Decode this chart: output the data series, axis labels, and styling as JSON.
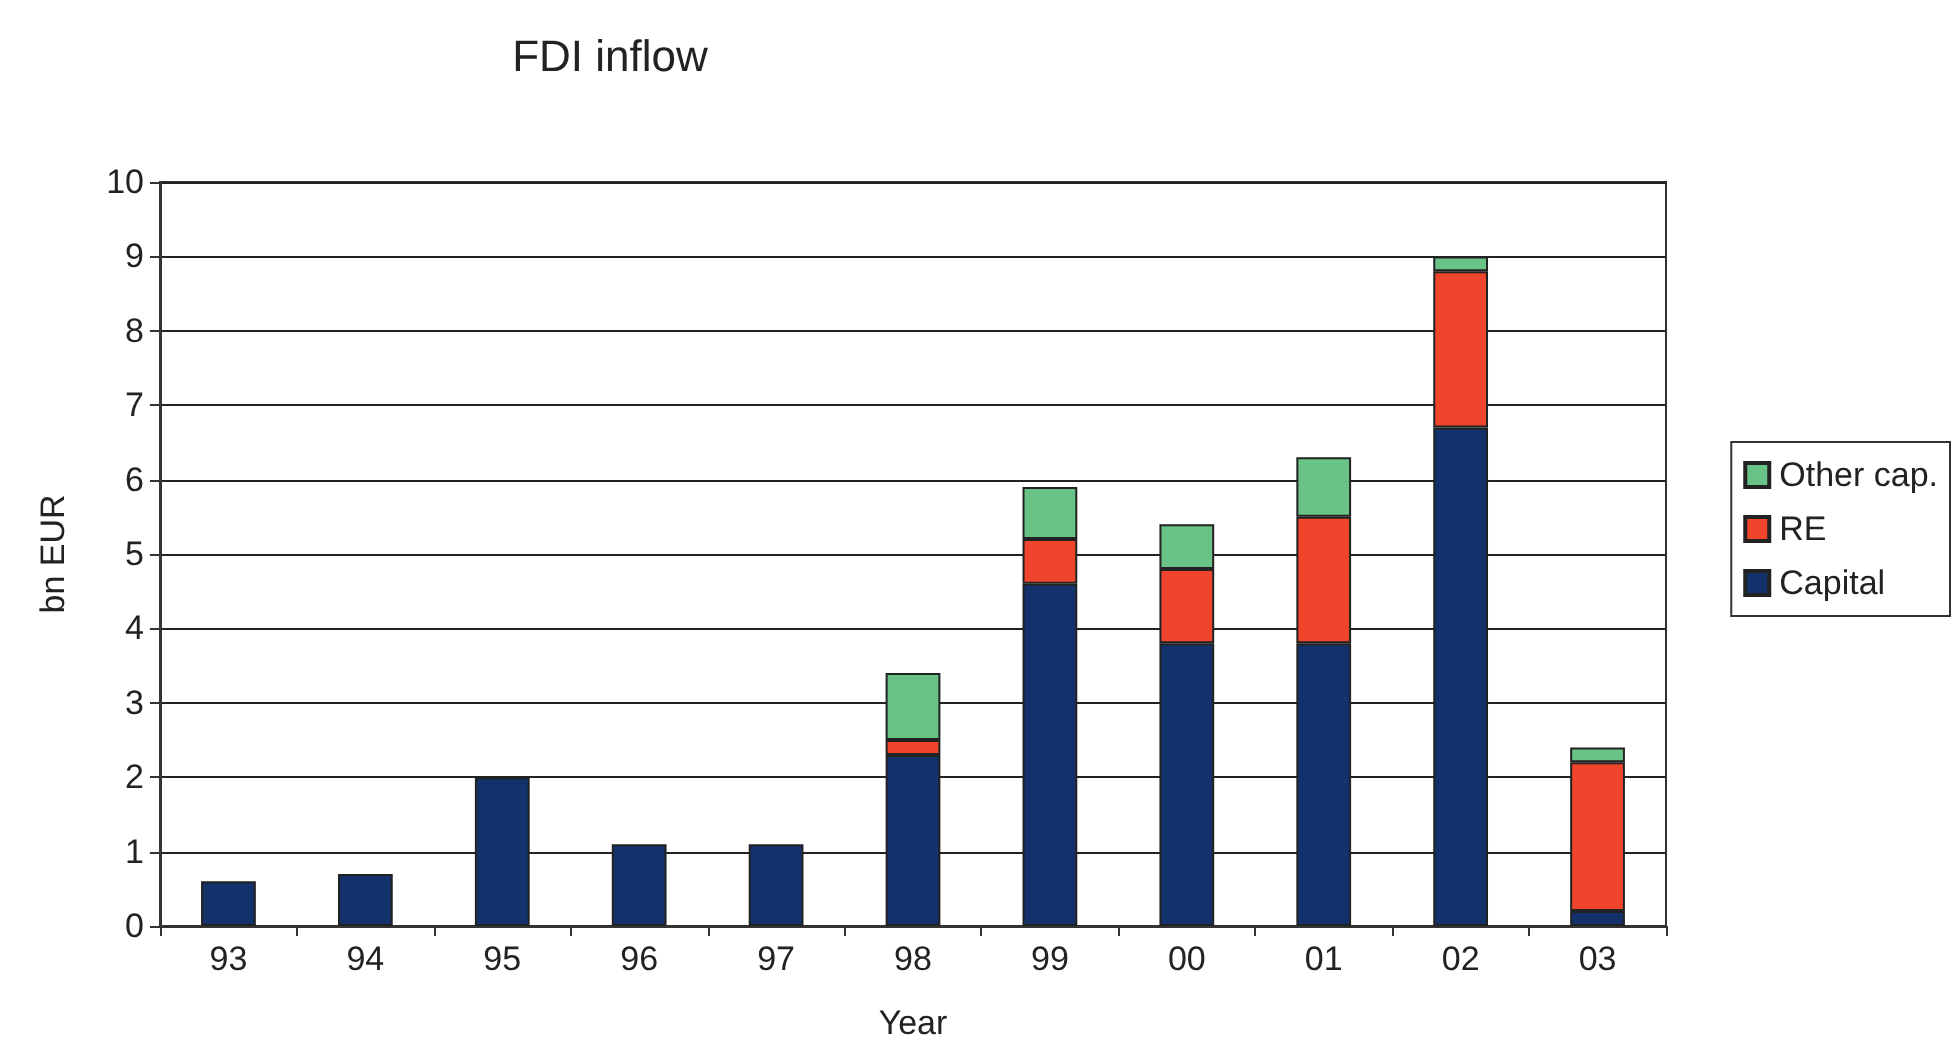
{
  "chart_data": {
    "type": "bar",
    "title": "FDI inflow",
    "xlabel": "Year",
    "ylabel": "bn EUR",
    "categories": [
      "93",
      "94",
      "95",
      "96",
      "97",
      "98",
      "99",
      "00",
      "01",
      "02",
      "03"
    ],
    "stacked": true,
    "series": [
      {
        "name": "Capital",
        "color": "#13316a",
        "values": [
          0.6,
          0.7,
          2.0,
          1.1,
          1.1,
          2.3,
          4.6,
          3.8,
          3.8,
          6.7,
          0.2
        ]
      },
      {
        "name": "RE",
        "color": "#ef452d",
        "values": [
          null,
          null,
          null,
          null,
          null,
          0.2,
          0.6,
          1.0,
          1.7,
          2.1,
          2.0
        ]
      },
      {
        "name": "Other cap.",
        "color": "#6ac386",
        "values": [
          null,
          null,
          null,
          null,
          null,
          0.9,
          0.7,
          0.6,
          0.8,
          0.2,
          0.2
        ]
      }
    ],
    "ylim": [
      0,
      10
    ],
    "yticks": [
      0,
      1,
      2,
      3,
      4,
      5,
      6,
      7,
      8,
      9,
      10
    ],
    "grid": "y",
    "legend": "right"
  }
}
